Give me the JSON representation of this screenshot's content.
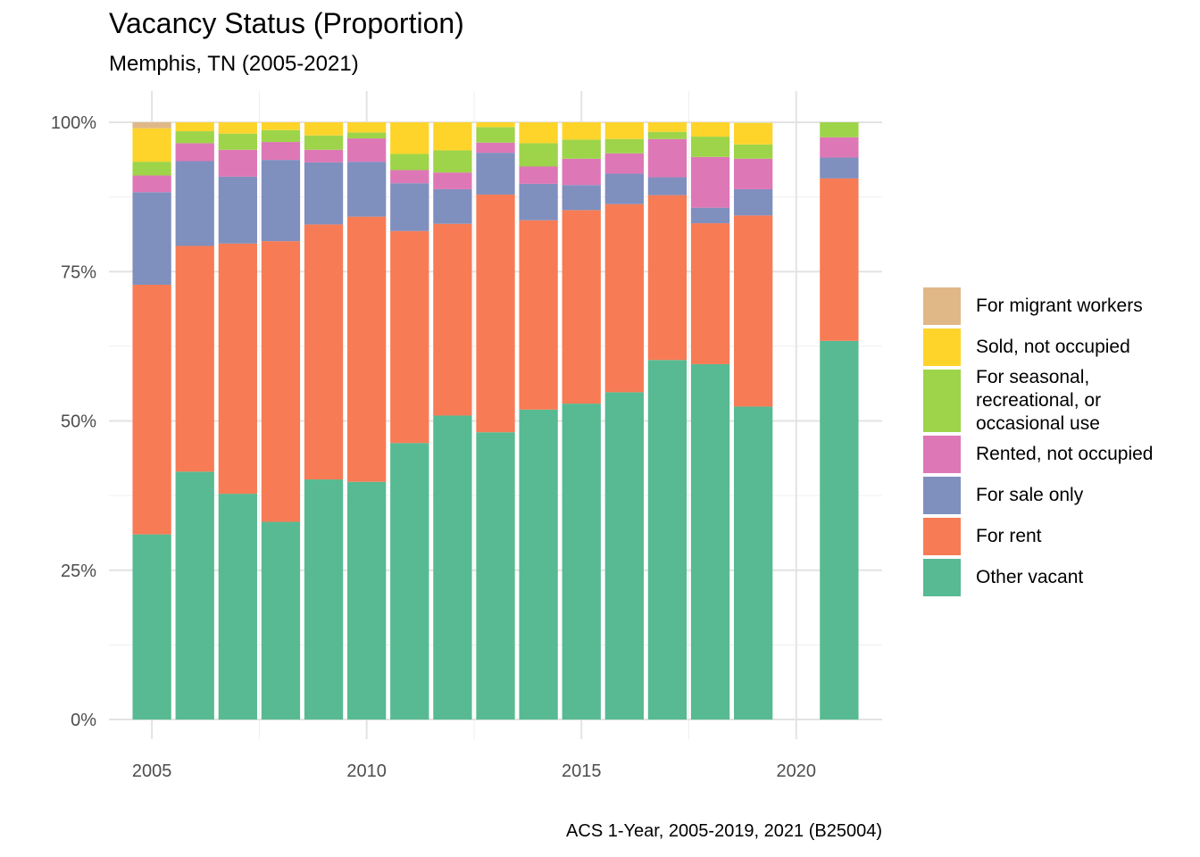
{
  "title": "Vacancy Status (Proportion)",
  "subtitle": "Memphis, TN (2005-2021)",
  "caption": "ACS 1-Year, 2005-2019, 2021 (B25004)",
  "chart_data": {
    "type": "bar",
    "stacked": true,
    "title": "Vacancy Status (Proportion)",
    "subtitle": "Memphis, TN (2005-2021)",
    "xlabel": "",
    "ylabel": "",
    "xlim": [
      2004,
      2022
    ],
    "ylim": [
      0,
      1
    ],
    "x_ticks": [
      2005,
      2010,
      2015,
      2020
    ],
    "y_ticks": [
      0,
      0.25,
      0.5,
      0.75,
      1
    ],
    "y_tick_labels": [
      "0%",
      "25%",
      "50%",
      "75%",
      "100%"
    ],
    "x": [
      2005,
      2006,
      2007,
      2008,
      2009,
      2010,
      2011,
      2012,
      2013,
      2014,
      2015,
      2016,
      2017,
      2018,
      2019,
      2021
    ],
    "legend_position": "right",
    "series": [
      {
        "name": "Other vacant",
        "color": "#57BA92",
        "values": [
          0.31,
          0.415,
          0.378,
          0.331,
          0.402,
          0.398,
          0.463,
          0.509,
          0.481,
          0.519,
          0.529,
          0.548,
          0.602,
          0.595,
          0.524,
          0.634
        ]
      },
      {
        "name": "For rent",
        "color": "#F77B55",
        "values": [
          0.418,
          0.378,
          0.419,
          0.47,
          0.427,
          0.444,
          0.355,
          0.321,
          0.398,
          0.317,
          0.324,
          0.315,
          0.276,
          0.236,
          0.32,
          0.272
        ]
      },
      {
        "name": "For sale only",
        "color": "#7F8FBE",
        "values": [
          0.155,
          0.142,
          0.112,
          0.136,
          0.104,
          0.092,
          0.08,
          0.058,
          0.07,
          0.061,
          0.042,
          0.051,
          0.03,
          0.026,
          0.044,
          0.035
        ]
      },
      {
        "name": "Rented, not occupied",
        "color": "#DE77B6",
        "values": [
          0.028,
          0.03,
          0.045,
          0.03,
          0.021,
          0.039,
          0.022,
          0.028,
          0.017,
          0.029,
          0.044,
          0.034,
          0.064,
          0.085,
          0.051,
          0.034
        ]
      },
      {
        "name": "For seasonal, recreational, or occasional use",
        "color": "#9DD449",
        "values": [
          0.023,
          0.02,
          0.027,
          0.02,
          0.024,
          0.01,
          0.027,
          0.037,
          0.026,
          0.039,
          0.032,
          0.024,
          0.012,
          0.034,
          0.024,
          0.025
        ]
      },
      {
        "name": "Sold, not occupied",
        "color": "#FED42B",
        "values": [
          0.056,
          0.015,
          0.019,
          0.013,
          0.022,
          0.017,
          0.053,
          0.047,
          0.008,
          0.035,
          0.029,
          0.028,
          0.016,
          0.024,
          0.036,
          0.0
        ]
      },
      {
        "name": "For migrant workers",
        "color": "#E0B887",
        "values": [
          0.01,
          0.0,
          0.0,
          0.0,
          0.0,
          0.0,
          0.0,
          0.0,
          0.0,
          0.0,
          0.0,
          0.0,
          0.0,
          0.0,
          0.0,
          0.0
        ]
      }
    ]
  },
  "legend": {
    "items": [
      {
        "label": "For migrant workers",
        "color": "#E0B887"
      },
      {
        "label": "Sold, not occupied",
        "color": "#FED42B"
      },
      {
        "label": "For seasonal,",
        "label2": "recreational, or",
        "label3": "occasional use",
        "color": "#9DD449"
      },
      {
        "label": "Rented, not occupied",
        "color": "#DE77B6"
      },
      {
        "label": "For sale only",
        "color": "#7F8FBE"
      },
      {
        "label": "For rent",
        "color": "#F77B55"
      },
      {
        "label": "Other vacant",
        "color": "#57BA92"
      }
    ]
  }
}
